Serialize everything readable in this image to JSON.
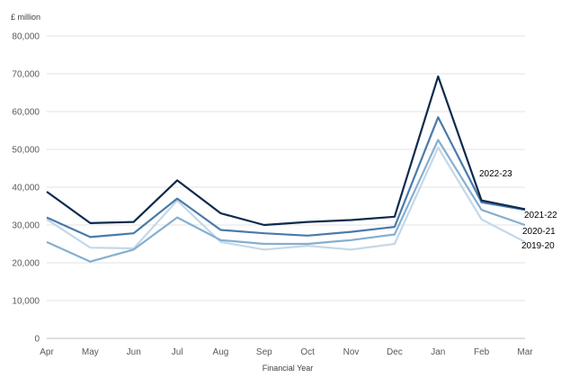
{
  "chart_data": {
    "type": "line",
    "title": "",
    "ylabel": "£ million",
    "xlabel": "Financial Year",
    "ylim": [
      0,
      80000
    ],
    "yticks": [
      0,
      10000,
      20000,
      30000,
      40000,
      50000,
      60000,
      70000,
      80000
    ],
    "ytick_labels": [
      "0",
      "10,000",
      "20,000",
      "30,000",
      "40,000",
      "50,000",
      "60,000",
      "70,000",
      "80,000"
    ],
    "categories": [
      "Apr",
      "May",
      "Jun",
      "Jul",
      "Aug",
      "Sep",
      "Oct",
      "Nov",
      "Dec",
      "Jan",
      "Feb",
      "Mar"
    ],
    "grid": true,
    "series": [
      {
        "name": "2019-20",
        "color": "#c3d8e8",
        "values": [
          31500,
          24000,
          23800,
          36500,
          25500,
          23500,
          24500,
          23500,
          25000,
          50500,
          31500,
          25500
        ]
      },
      {
        "name": "2020-21",
        "color": "#85afd0",
        "values": [
          25500,
          20300,
          23500,
          32000,
          26000,
          25000,
          25000,
          26000,
          27500,
          52500,
          34000,
          30000
        ]
      },
      {
        "name": "2021-22",
        "color": "#4a7aa8",
        "values": [
          32000,
          26800,
          27800,
          37000,
          28700,
          27800,
          27200,
          28200,
          29500,
          58500,
          36000,
          34000
        ]
      },
      {
        "name": "2022-23",
        "color": "#0e2a4d",
        "values": [
          38800,
          30500,
          30800,
          41800,
          33100,
          30000,
          30800,
          31300,
          32200,
          69300,
          36500,
          34200
        ]
      }
    ]
  }
}
